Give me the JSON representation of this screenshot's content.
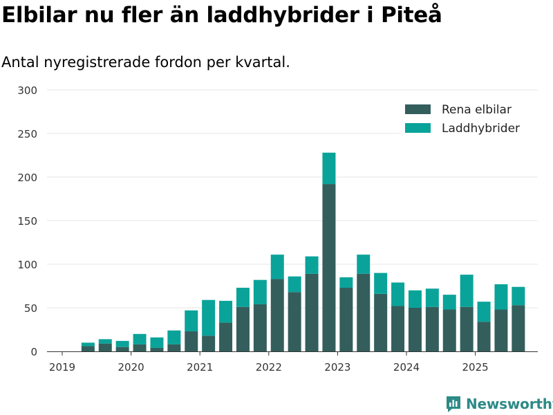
{
  "title": "Elbilar nu fler än laddhybrider i Piteå",
  "subtitle": "Antal nyregistrerade fordon per kvartal.",
  "logo": {
    "text": "Newsworthy",
    "icon": "newsworthy-logo-icon"
  },
  "colors": {
    "rena_elbilar": "#335e5c",
    "laddhybrider": "#0aa39a",
    "grid": "#e6e6e6",
    "axis": "#333333"
  },
  "chart_data": {
    "type": "bar",
    "stacked": true,
    "title": "Elbilar nu fler än laddhybrider i Piteå",
    "subtitle": "Antal nyregistrerade fordon per kvartal.",
    "xlabel": "",
    "ylabel": "",
    "ylim": [
      0,
      300
    ],
    "yticks": [
      "0",
      "50",
      "100",
      "150",
      "200",
      "250",
      "300"
    ],
    "xticks": [
      "2019",
      "2020",
      "2021",
      "2022",
      "2023",
      "2024",
      "2025"
    ],
    "legend_position": "top-right",
    "categories": [
      "2019 Q2",
      "2019 Q3",
      "2019 Q4",
      "2020 Q1",
      "2020 Q2",
      "2020 Q3",
      "2020 Q4",
      "2021 Q1",
      "2021 Q2",
      "2021 Q3",
      "2021 Q4",
      "2022 Q1",
      "2022 Q2",
      "2022 Q3",
      "2022 Q4",
      "2023 Q1",
      "2023 Q2",
      "2023 Q3",
      "2023 Q4",
      "2024 Q1",
      "2024 Q2",
      "2024 Q3",
      "2024 Q4",
      "2025 Q1",
      "2025 Q2",
      "2025 Q3"
    ],
    "series": [
      {
        "name": "Rena elbilar",
        "values": [
          6,
          9,
          5,
          8,
          4,
          8,
          23,
          18,
          33,
          51,
          54,
          83,
          68,
          89,
          192,
          73,
          89,
          66,
          52,
          50,
          51,
          48,
          51,
          34,
          48,
          53
        ]
      },
      {
        "name": "Laddhybrider",
        "values": [
          4,
          5,
          7,
          12,
          12,
          16,
          24,
          41,
          25,
          22,
          28,
          28,
          18,
          20,
          36,
          12,
          22,
          24,
          27,
          20,
          21,
          17,
          37,
          23,
          29,
          21
        ]
      }
    ]
  }
}
